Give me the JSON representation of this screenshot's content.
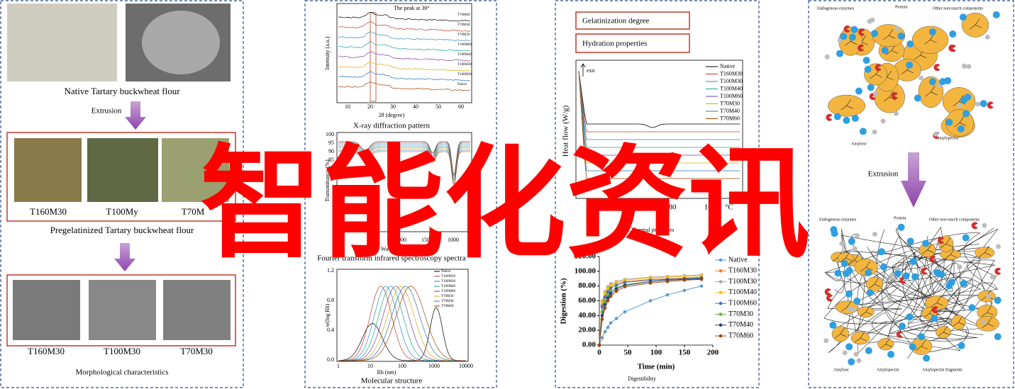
{
  "watermark": "智能化资讯",
  "panel1": {
    "native_label": "Native Tartary buckwheat flour",
    "arrow_label": "Extrusion",
    "samples": [
      "T160M30",
      "T100My",
      "T70M"
    ],
    "samples_caption": "Pregelatinized Tartary buckwheat flour",
    "sem": [
      "T160M30",
      "T100M30",
      "T70M30"
    ],
    "sem_caption": "Morphological characteristics"
  },
  "panel2": {
    "xrd": {
      "annotation": "The peak at 30°",
      "ylabel": "Intensity (a.u.)",
      "xlabel": "2θ (degree)",
      "xticks": [
        "10",
        "20",
        "30",
        "40",
        "50",
        "60"
      ],
      "series": [
        "T70M60",
        "T70M40",
        "T70M30",
        "T100M60",
        "T100M40",
        "T100M30",
        "T160M30",
        "Native"
      ],
      "caption": "X-ray diffraction pattern"
    },
    "ftir": {
      "ylabel": "Transmittance (%)",
      "yticks": [
        "100",
        "95",
        "90",
        "85",
        "80"
      ],
      "xticks": [
        "2000",
        "1500",
        "1000"
      ],
      "xlabel": "Wavenumber (cm⁻¹)",
      "caption": "Fourier transform infrared spectroscopy spectra"
    },
    "mw": {
      "ylabel": "w(log Rh)",
      "xlabel": "Rh (nm)",
      "xticks": [
        "1",
        "10",
        "100",
        "1000",
        "10000"
      ],
      "yticks": [
        "0.0",
        "0.4",
        "0.8",
        "1.2"
      ],
      "series": [
        "Native",
        "T160M30",
        "T100M30",
        "T100M40",
        "T100M60",
        "T70M30",
        "T70M40",
        "T70M60"
      ],
      "caption": "Molecular structure"
    }
  },
  "panel3": {
    "box1": "Gelatinization degree",
    "box2": "Hydration properties",
    "dsc": {
      "ylabel": "Heat flow (W/g)",
      "exo": "exo",
      "xticks": [
        "40",
        "60",
        "80",
        "100"
      ],
      "xunit": "°C",
      "series": [
        "Native",
        "T160M30",
        "T100M30",
        "T100M40",
        "T100M60",
        "T70M30",
        "T70M40",
        "T70M60"
      ],
      "caption": "Thermal properties"
    },
    "digestion": {
      "ylabel": "Digestion (%)",
      "xlabel": "Time (min)",
      "caption": "Digestibility",
      "x": [
        0,
        5,
        10,
        15,
        20,
        30,
        45,
        90,
        120,
        150,
        180
      ],
      "xlim": [
        0,
        200
      ],
      "xticks": [
        0,
        50,
        100,
        150,
        200
      ],
      "ylim": [
        0,
        120
      ],
      "yticks": [
        {
          "value": 0,
          "label": "0.00"
        },
        {
          "value": 20,
          "label": "20.00"
        },
        {
          "value": 40,
          "label": "40.00"
        },
        {
          "value": 60,
          "label": "60.00"
        },
        {
          "value": 80,
          "label": "80.00"
        },
        {
          "value": 100,
          "label": "100.00"
        },
        {
          "value": 120,
          "label": "120.00"
        }
      ],
      "series": [
        {
          "name": "Native",
          "color": "#5b9bd5",
          "values": [
            0,
            10,
            18,
            24,
            30,
            36,
            45,
            60,
            68,
            74,
            80
          ]
        },
        {
          "name": "T160M30",
          "color": "#ed7d31",
          "values": [
            0,
            55,
            68,
            75,
            79,
            83,
            86,
            89,
            90,
            91,
            92
          ]
        },
        {
          "name": "T100M30",
          "color": "#a5a5a5",
          "values": [
            0,
            60,
            72,
            79,
            83,
            86,
            89,
            92,
            93,
            94,
            95
          ]
        },
        {
          "name": "T100M40",
          "color": "#ffc000",
          "values": [
            0,
            58,
            70,
            77,
            81,
            85,
            88,
            91,
            92,
            93,
            94
          ]
        },
        {
          "name": "T100M60",
          "color": "#4472c4",
          "values": [
            0,
            52,
            65,
            72,
            77,
            81,
            85,
            88,
            89,
            90,
            91
          ]
        },
        {
          "name": "T70M30",
          "color": "#70ad47",
          "values": [
            0,
            45,
            60,
            68,
            73,
            78,
            82,
            86,
            88,
            89,
            90
          ]
        },
        {
          "name": "T70M40",
          "color": "#264478",
          "values": [
            0,
            40,
            55,
            64,
            70,
            76,
            81,
            86,
            88,
            89,
            90
          ]
        },
        {
          "name": "T70M60",
          "color": "#9e480e",
          "values": [
            0,
            35,
            50,
            60,
            66,
            73,
            79,
            84,
            86,
            88,
            89
          ]
        }
      ]
    }
  },
  "panel4": {
    "top": {
      "enzymes": "Endogenous enzymes",
      "protein": "Protein",
      "other": "Other non-starch components",
      "amylose": "Amylose",
      "amylopectin": "Amylopectin"
    },
    "arrow_label": "Extrusion",
    "bottom": {
      "enzymes": "Endogenous enzymes",
      "protein": "Protein",
      "other": "Other non-starch components",
      "amylose": "Amylose",
      "amylopectin": "Amylopectin",
      "fragments": "Amylopectin fragments"
    }
  }
}
